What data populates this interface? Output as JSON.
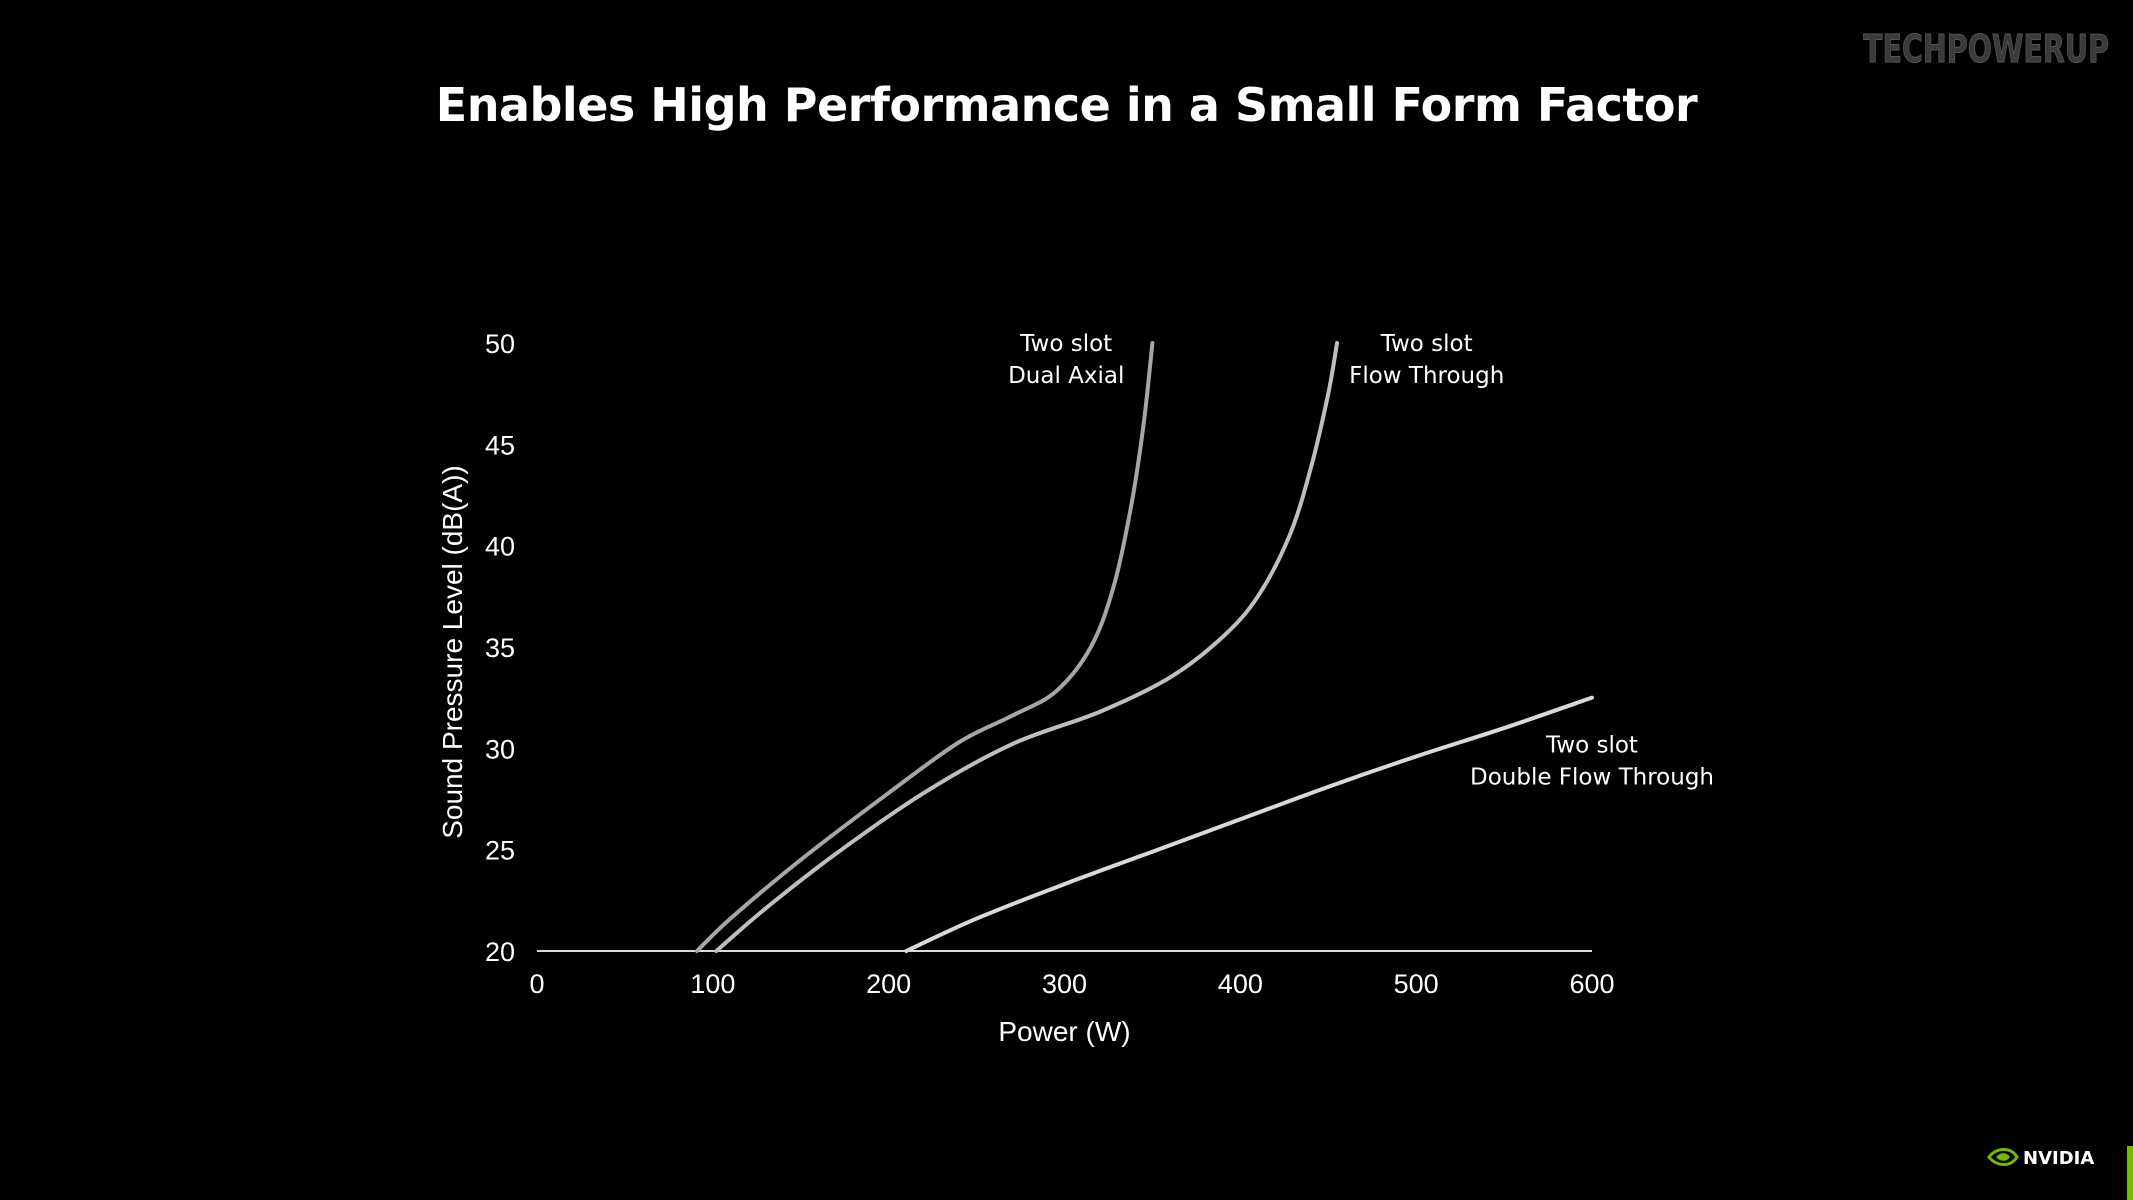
{
  "slide": {
    "title": "Enables High Performance in a Small Form Factor",
    "watermark": "TECHPOWERUP",
    "brand": "NVIDIA",
    "accent_color": "#76b900"
  },
  "chart_data": {
    "type": "line",
    "title": "Enables High Performance in a Small Form Factor",
    "xlabel": "Power (W)",
    "ylabel": "Sound Pressure Level (dB(A))",
    "xlim": [
      0,
      600
    ],
    "ylim": [
      20,
      50
    ],
    "x_ticks": [
      0,
      100,
      200,
      300,
      400,
      500,
      600
    ],
    "y_ticks": [
      20,
      25,
      30,
      35,
      40,
      45,
      50
    ],
    "grid": false,
    "legend": "none (inline labels)",
    "series": [
      {
        "name": "Two slot Dual Axial",
        "label_lines": [
          "Two slot",
          "Dual Axial"
        ],
        "color": "#a6a6a6",
        "points": [
          [
            91,
            20
          ],
          [
            110,
            21.6
          ],
          [
            150,
            24.5
          ],
          [
            200,
            27.8
          ],
          [
            240,
            30.3
          ],
          [
            270,
            31.6
          ],
          [
            295,
            32.8
          ],
          [
            315,
            35
          ],
          [
            328,
            38
          ],
          [
            338,
            42
          ],
          [
            345,
            46
          ],
          [
            350,
            50
          ]
        ]
      },
      {
        "name": "Two slot Flow Through",
        "label_lines": [
          "Two slot",
          "Flow Through"
        ],
        "color": "#bfbfbf",
        "points": [
          [
            102,
            20
          ],
          [
            130,
            22.1
          ],
          [
            170,
            24.8
          ],
          [
            220,
            27.8
          ],
          [
            270,
            30.2
          ],
          [
            320,
            31.8
          ],
          [
            360,
            33.5
          ],
          [
            390,
            35.5
          ],
          [
            410,
            37.5
          ],
          [
            428,
            40.5
          ],
          [
            440,
            43.8
          ],
          [
            450,
            47.5
          ],
          [
            455,
            50
          ]
        ]
      },
      {
        "name": "Two slot Double Flow Through",
        "label_lines": [
          "Two slot",
          "Double Flow Through"
        ],
        "color": "#d9d9d9",
        "points": [
          [
            210,
            20
          ],
          [
            250,
            21.6
          ],
          [
            300,
            23.3
          ],
          [
            350,
            24.9
          ],
          [
            400,
            26.5
          ],
          [
            450,
            28.1
          ],
          [
            500,
            29.6
          ],
          [
            550,
            31
          ],
          [
            600,
            32.5
          ]
        ]
      }
    ]
  }
}
